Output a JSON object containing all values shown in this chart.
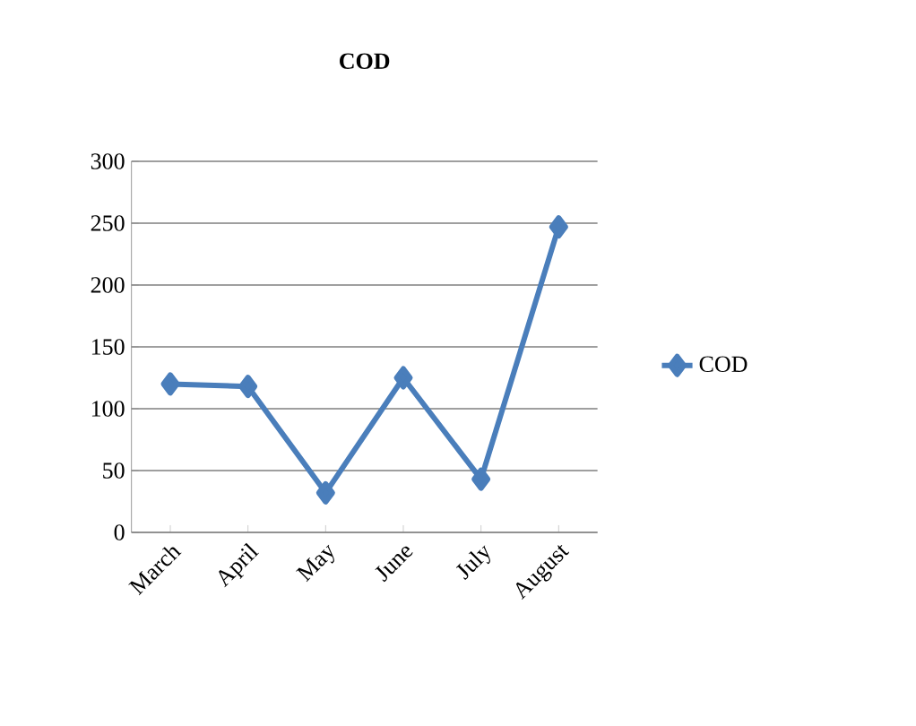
{
  "chart_data": {
    "type": "line",
    "title": "COD",
    "categories": [
      "March",
      "April",
      "May",
      "June",
      "July",
      "August"
    ],
    "series": [
      {
        "name": "COD",
        "color": "#4a7ebb",
        "values": [
          120,
          118,
          32,
          125,
          43,
          247
        ]
      }
    ],
    "ylim": [
      0,
      300
    ],
    "yticks": [
      0,
      50,
      100,
      150,
      200,
      250,
      300
    ],
    "grid": "y",
    "legend": "right",
    "marker": "diamond",
    "line_style": "solid"
  }
}
